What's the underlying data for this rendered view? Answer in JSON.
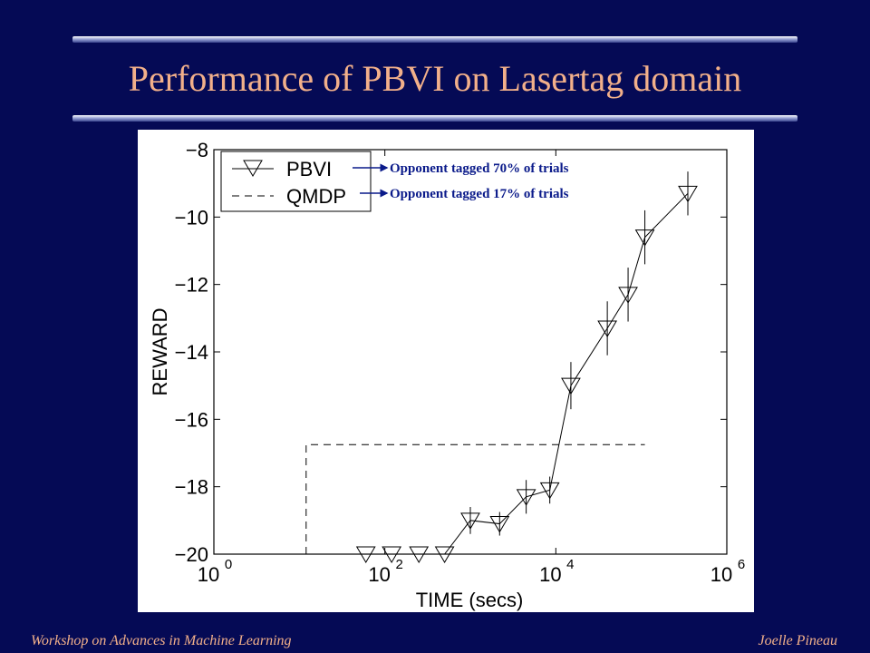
{
  "slide": {
    "title": "Performance of PBVI on Lasertag domain",
    "footer_left": "Workshop on Advances in Machine Learning",
    "footer_right": "Joelle Pineau",
    "colors": {
      "background": "#050A55",
      "title": "#F2B08A",
      "annotation": "#0A1A8A"
    }
  },
  "chart_data": {
    "type": "line",
    "xlabel": "TIME (secs)",
    "ylabel": "REWARD",
    "x_scale": "log",
    "xlim": [
      1,
      1000000
    ],
    "ylim": [
      -20,
      -8
    ],
    "x_ticks": [
      {
        "value": 1,
        "base": "10",
        "exp": "0"
      },
      {
        "value": 100,
        "base": "10",
        "exp": "2"
      },
      {
        "value": 10000,
        "base": "10",
        "exp": "4"
      },
      {
        "value": 1000000,
        "base": "10",
        "exp": "6"
      }
    ],
    "y_ticks": [
      {
        "value": -8,
        "label": "−8"
      },
      {
        "value": -10,
        "label": "−10"
      },
      {
        "value": -12,
        "label": "−12"
      },
      {
        "value": -14,
        "label": "−14"
      },
      {
        "value": -16,
        "label": "−16"
      },
      {
        "value": -18,
        "label": "−18"
      },
      {
        "value": -20,
        "label": "−20"
      }
    ],
    "grid": false,
    "legend_position": "top-left",
    "series": [
      {
        "name": "PBVI",
        "style": "solid line with downward-triangle markers and error bars",
        "points": [
          {
            "x": 60,
            "y": -20.0,
            "err": 0.0
          },
          {
            "x": 120,
            "y": -20.0,
            "err": 0.0
          },
          {
            "x": 250,
            "y": -20.0,
            "err": 0.0
          },
          {
            "x": 500,
            "y": -20.0,
            "err": 0.0
          },
          {
            "x": 1000,
            "y": -19.0,
            "err": 0.4
          },
          {
            "x": 2200,
            "y": -19.1,
            "err": 0.35
          },
          {
            "x": 4500,
            "y": -18.3,
            "err": 0.5
          },
          {
            "x": 8500,
            "y": -18.1,
            "err": 0.4
          },
          {
            "x": 15000,
            "y": -15.0,
            "err": 0.7
          },
          {
            "x": 40000,
            "y": -13.3,
            "err": 0.8
          },
          {
            "x": 70000,
            "y": -12.3,
            "err": 0.8
          },
          {
            "x": 110000,
            "y": -10.6,
            "err": 0.8
          },
          {
            "x": 350000,
            "y": -9.3,
            "err": 0.65
          }
        ]
      },
      {
        "name": "QMDP",
        "style": "dashed line",
        "points": [
          {
            "x": 12,
            "y": -20.0
          },
          {
            "x": 12,
            "y": -16.75
          },
          {
            "x": 110000,
            "y": -16.75
          }
        ]
      }
    ],
    "annotations": [
      {
        "series": "PBVI",
        "text": "Opponent tagged 70% of trials"
      },
      {
        "series": "QMDP",
        "text": "Opponent tagged 17% of trials"
      }
    ]
  }
}
